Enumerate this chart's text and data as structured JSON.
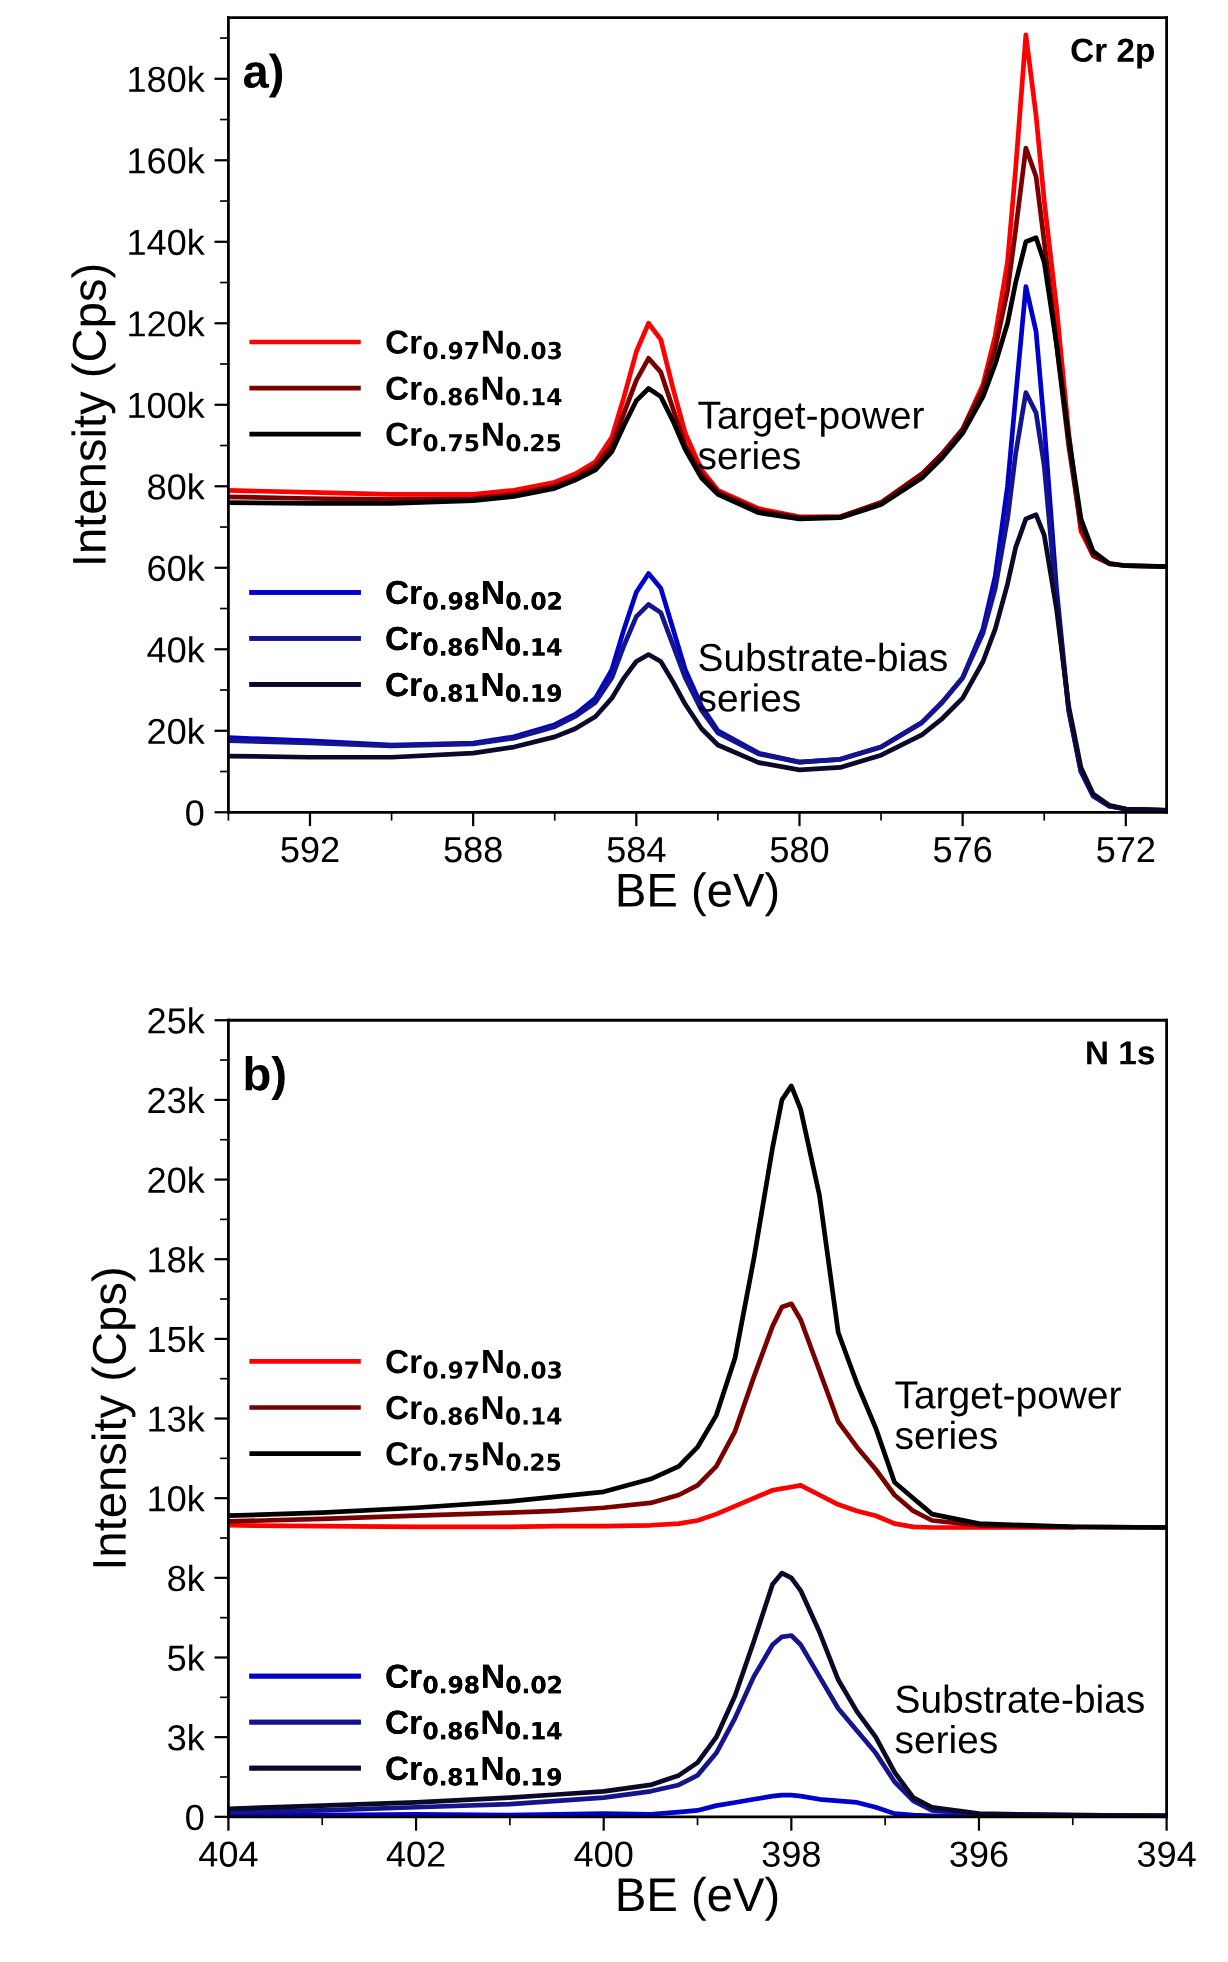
{
  "chart_data": [
    {
      "type": "line",
      "title": "a)",
      "subtitle": "Cr 2p",
      "xlabel": "BE (eV)",
      "ylabel": "Intensity (Cps)",
      "legend": "left",
      "line_style": "solid",
      "marker": "none",
      "annotations": [
        "Target-power series",
        "Substrate-bias series"
      ],
      "xlim": [
        594,
        571
      ],
      "xticks": [
        592,
        588,
        584,
        580,
        576,
        572
      ],
      "ylim": [
        0,
        195000
      ],
      "yticks": [
        0,
        {
          "value": 20000,
          "label": "20k"
        },
        {
          "value": 40000,
          "label": "40k"
        },
        {
          "value": 60000,
          "label": "60k"
        },
        {
          "value": 80000,
          "label": "80k"
        },
        {
          "value": 100000,
          "label": "100k"
        },
        {
          "value": 120000,
          "label": "120k"
        },
        {
          "value": 140000,
          "label": "140k"
        },
        {
          "value": 160000,
          "label": "160k"
        },
        {
          "value": 180000,
          "label": "180k"
        }
      ],
      "x": [
        594,
        592,
        590,
        588,
        587,
        586,
        585.5,
        585,
        584.6,
        584.3,
        584,
        583.7,
        583.4,
        583.1,
        582.8,
        582.4,
        582,
        581,
        580,
        579,
        578,
        577,
        576.5,
        576,
        575.5,
        575.2,
        574.9,
        574.7,
        574.45,
        574.2,
        574,
        573.7,
        573.4,
        573.1,
        572.8,
        572.4,
        572,
        571
      ],
      "series": [
        {
          "name": "Cr$_{0.97}$N$_{0.03}$",
          "color": "#ff0000",
          "values": [
            79000,
            78500,
            78000,
            78000,
            79000,
            81000,
            83000,
            86000,
            92000,
            102000,
            113000,
            120000,
            116000,
            104000,
            93000,
            84000,
            79000,
            74500,
            72500,
            72500,
            76000,
            83000,
            88000,
            94000,
            105000,
            117000,
            135000,
            158000,
            190800,
            171000,
            150000,
            124000,
            93000,
            69000,
            63000,
            61000,
            null,
            null
          ]
        },
        {
          "name": "Cr$_{0.86}$N$_{0.14}$",
          "color": "#7a0000",
          "values": [
            77400,
            77000,
            76800,
            77000,
            78000,
            80000,
            82000,
            85000,
            90000,
            98000,
            106000,
            111400,
            108000,
            99000,
            90000,
            83000,
            78500,
            74000,
            72300,
            72500,
            76000,
            83000,
            88000,
            94000,
            104000,
            114000,
            128000,
            143000,
            163000,
            156000,
            140000,
            115000,
            90000,
            70000,
            63000,
            61000,
            60500,
            60300
          ]
        },
        {
          "name": "Cr$_{0.75}$N$_{0.25}$",
          "color": "#000000",
          "values": [
            76000,
            75800,
            75800,
            76500,
            77500,
            79500,
            81500,
            84000,
            88500,
            95000,
            101000,
            104000,
            102000,
            96000,
            89000,
            82000,
            78000,
            73500,
            72000,
            72300,
            75500,
            82000,
            87000,
            93000,
            102000,
            110000,
            120000,
            130000,
            140000,
            141000,
            135000,
            115000,
            92000,
            72000,
            64000,
            61000,
            60500,
            60300
          ]
        },
        {
          "name": "Cr$_{0.98}$N$_{0.02}$",
          "color": "#0000cc",
          "values": [
            18300,
            17500,
            16500,
            17000,
            18500,
            21500,
            24000,
            28000,
            35000,
            45000,
            54000,
            58600,
            55000,
            45000,
            35000,
            26000,
            20000,
            14500,
            12300,
            13000,
            16000,
            22000,
            27000,
            33000,
            45000,
            58000,
            80000,
            102000,
            129000,
            118000,
            95000,
            55000,
            25000,
            10000,
            4000,
            1500,
            800,
            500
          ]
        },
        {
          "name": "Cr$_{0.86}$N$_{0.14}$",
          "color": "#14148c",
          "values": [
            17600,
            17000,
            16300,
            16800,
            18200,
            21000,
            23500,
            27000,
            33000,
            41000,
            48000,
            51000,
            49000,
            41000,
            33000,
            25000,
            19500,
            14300,
            12300,
            13000,
            16000,
            22000,
            27000,
            33000,
            44000,
            55000,
            72000,
            88000,
            103000,
            98000,
            85000,
            52000,
            25000,
            10000,
            4000,
            1500,
            800,
            500
          ]
        },
        {
          "name": "Cr$_{0.81}$N$_{0.19}$",
          "color": "#0a0a28",
          "values": [
            13800,
            13500,
            13500,
            14500,
            16000,
            18500,
            20500,
            23500,
            28000,
            33000,
            37000,
            38700,
            37000,
            32000,
            26500,
            20500,
            16500,
            12200,
            10400,
            11000,
            14000,
            19000,
            23000,
            28000,
            37000,
            45000,
            56000,
            65000,
            72000,
            73000,
            68000,
            50000,
            26000,
            11000,
            4500,
            1700,
            800,
            500
          ]
        }
      ]
    },
    {
      "type": "line",
      "title": "b)",
      "subtitle": "N 1s",
      "xlabel": "BE (eV)",
      "ylabel": "Intensity (Cps)",
      "legend": "left",
      "line_style": "solid",
      "marker": "none",
      "annotations": [
        "Target-power series",
        "Substrate-bias series"
      ],
      "xlim": [
        404,
        394
      ],
      "xticks": [
        404,
        402,
        400,
        398,
        396,
        394
      ],
      "ylim": [
        0,
        25000
      ],
      "yticks": [
        0,
        {
          "value": 2500,
          "label": "3k"
        },
        {
          "value": 5000,
          "label": "5k"
        },
        {
          "value": 7500,
          "label": "8k"
        },
        {
          "value": 10000,
          "label": "10k"
        },
        {
          "value": 12500,
          "label": "13k"
        },
        {
          "value": 15000,
          "label": "15k"
        },
        {
          "value": 17500,
          "label": "18k"
        },
        {
          "value": 20000,
          "label": "20k"
        },
        {
          "value": 22500,
          "label": "23k"
        },
        {
          "value": 25000,
          "label": "25k"
        }
      ],
      "x": [
        404,
        403,
        402,
        401,
        400.5,
        400,
        399.5,
        399.2,
        399,
        398.8,
        398.6,
        398.4,
        398.2,
        398.1,
        398,
        397.9,
        397.7,
        397.5,
        397.3,
        397.1,
        396.9,
        396.7,
        396.5,
        396,
        395,
        394
      ],
      "series": [
        {
          "name": "Cr$_{0.97}$N$_{0.03}$",
          "color": "#ff0000",
          "values": [
            9150,
            9120,
            9100,
            9100,
            9120,
            9120,
            9150,
            9200,
            9300,
            9500,
            9750,
            10000,
            10250,
            10300,
            10350,
            10400,
            10100,
            9800,
            9600,
            9450,
            9200,
            9100,
            9080,
            9080,
            9080,
            null
          ]
        },
        {
          "name": "Cr$_{0.86}$N$_{0.14}$",
          "color": "#7a0000",
          "values": [
            9270,
            9350,
            9450,
            9550,
            9600,
            9700,
            9850,
            10100,
            10400,
            11000,
            12100,
            13800,
            15400,
            16000,
            16100,
            15600,
            14000,
            12400,
            11600,
            10900,
            10100,
            9600,
            9300,
            9150,
            9100,
            9080
          ]
        },
        {
          "name": "Cr$_{0.75}$N$_{0.25}$",
          "color": "#000000",
          "values": [
            9450,
            9550,
            9700,
            9900,
            10050,
            10200,
            10600,
            11000,
            11600,
            12600,
            14400,
            17500,
            21000,
            22500,
            22940,
            22200,
            19500,
            15200,
            13600,
            12200,
            10500,
            10000,
            9500,
            9200,
            9100,
            9080
          ]
        },
        {
          "name": "Cr$_{0.98}$N$_{0.02}$",
          "color": "#0000cc",
          "values": [
            50,
            50,
            80,
            50,
            80,
            100,
            80,
            150,
            200,
            350,
            450,
            550,
            650,
            680,
            680,
            650,
            550,
            500,
            450,
            300,
            100,
            50,
            30,
            30,
            30,
            30
          ]
        },
        {
          "name": "Cr$_{0.86}$N$_{0.14}$",
          "color": "#14148c",
          "values": [
            150,
            200,
            300,
            400,
            500,
            600,
            800,
            1000,
            1300,
            2000,
            3100,
            4400,
            5400,
            5650,
            5690,
            5400,
            4400,
            3400,
            2700,
            2000,
            1100,
            500,
            200,
            80,
            50,
            30
          ]
        },
        {
          "name": "Cr$_{0.81}$N$_{0.19}$",
          "color": "#0a0a28",
          "values": [
            250,
            350,
            450,
            600,
            700,
            800,
            1000,
            1300,
            1700,
            2500,
            3800,
            5500,
            7300,
            7650,
            7500,
            7100,
            5800,
            4300,
            3300,
            2500,
            1400,
            600,
            300,
            100,
            50,
            30
          ]
        }
      ]
    }
  ]
}
